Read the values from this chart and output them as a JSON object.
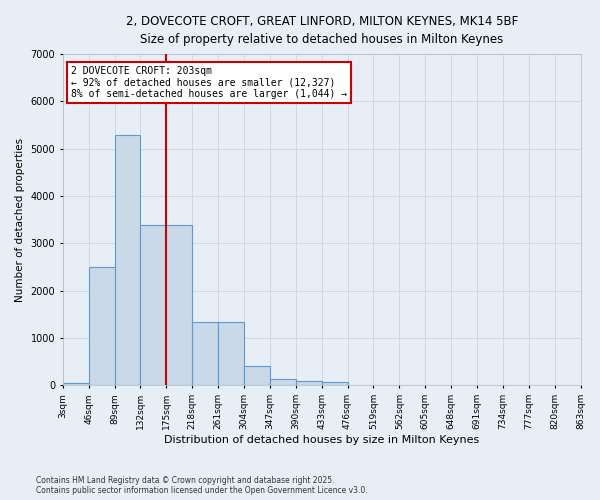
{
  "title_line1": "2, DOVECOTE CROFT, GREAT LINFORD, MILTON KEYNES, MK14 5BF",
  "title_line2": "Size of property relative to detached houses in Milton Keynes",
  "xlabel": "Distribution of detached houses by size in Milton Keynes",
  "ylabel": "Number of detached properties",
  "tick_labels": [
    "3sqm",
    "46sqm",
    "89sqm",
    "132sqm",
    "175sqm",
    "218sqm",
    "261sqm",
    "304sqm",
    "347sqm",
    "390sqm",
    "433sqm",
    "476sqm",
    "519sqm",
    "562sqm",
    "605sqm",
    "648sqm",
    "691sqm",
    "734sqm",
    "777sqm",
    "820sqm",
    "863sqm"
  ],
  "values": [
    50,
    2500,
    5300,
    3400,
    3400,
    1350,
    1350,
    400,
    130,
    100,
    80,
    0,
    0,
    0,
    0,
    0,
    0,
    0,
    0,
    0
  ],
  "bar_color": "#c9d9e8",
  "bar_edge_color": "#5b9bd5",
  "vline_bin": 4,
  "annotation_text_line1": "2 DOVECOTE CROFT: 203sqm",
  "annotation_text_line2": "← 92% of detached houses are smaller (12,327)",
  "annotation_text_line3": "8% of semi-detached houses are larger (1,044) →",
  "annotation_box_color": "#ffffff",
  "annotation_box_edge": "#cc0000",
  "vline_color": "#cc0000",
  "grid_color": "#d0d8e8",
  "background_color": "#e8eef5",
  "ylim": [
    0,
    7000
  ],
  "yticks": [
    0,
    1000,
    2000,
    3000,
    4000,
    5000,
    6000,
    7000
  ],
  "footnote_line1": "Contains HM Land Registry data © Crown copyright and database right 2025.",
  "footnote_line2": "Contains public sector information licensed under the Open Government Licence v3.0."
}
